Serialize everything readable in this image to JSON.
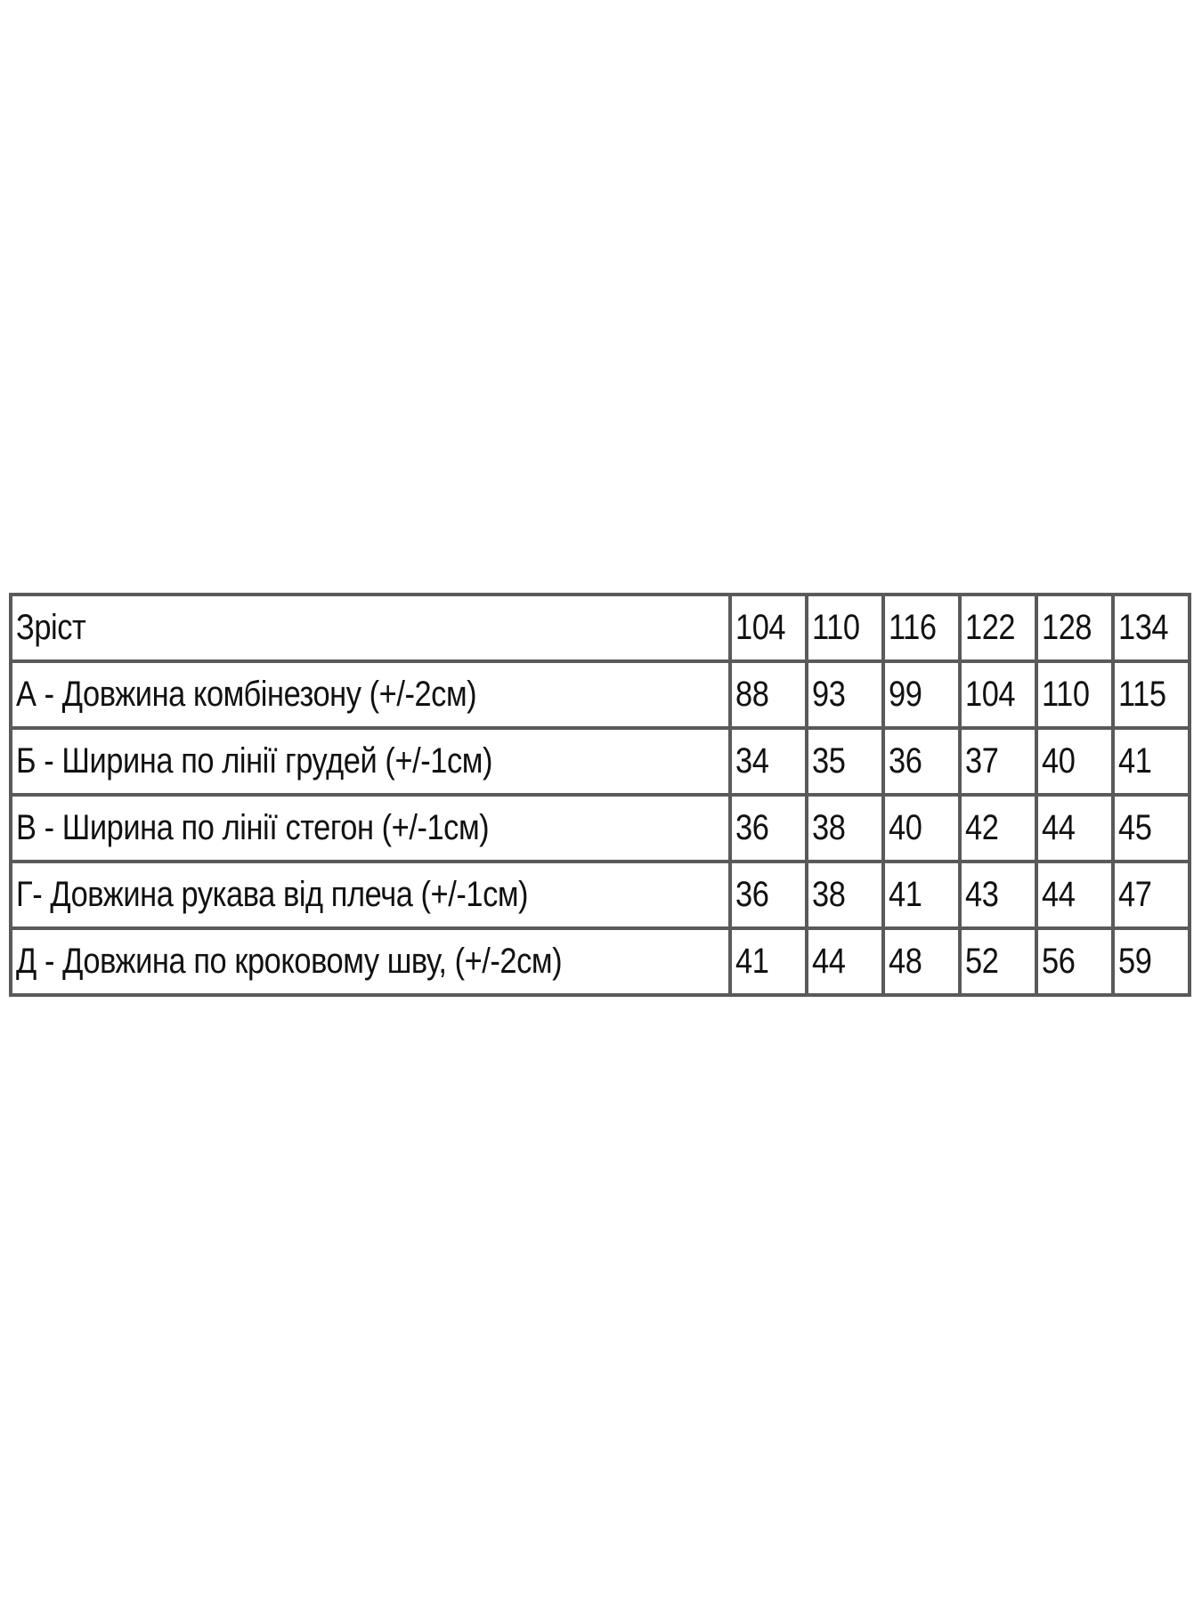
{
  "table": {
    "header": {
      "label": "Зріст",
      "sizes": [
        "104",
        "110",
        "116",
        "122",
        "128",
        "134"
      ]
    },
    "rows": [
      {
        "label": "А - Довжина комбінезону (+/-2см)",
        "values": [
          "88",
          "93",
          "99",
          "104",
          "110",
          "115"
        ]
      },
      {
        "label": "Б - Ширина по лінії грудей (+/-1см)",
        "values": [
          "34",
          "35",
          "36",
          "37",
          "40",
          "41"
        ]
      },
      {
        "label": "В - Ширина по лінії стегон (+/-1см)",
        "values": [
          "36",
          "38",
          "40",
          "42",
          "44",
          "45"
        ]
      },
      {
        "label": "Г- Довжина рукава від плеча (+/-1см)",
        "values": [
          "36",
          "38",
          "41",
          "43",
          "44",
          "47"
        ]
      },
      {
        "label": "Д - Довжина по кроковому шву, (+/-2см)",
        "values": [
          "41",
          "44",
          "48",
          "52",
          "56",
          "59"
        ]
      }
    ],
    "border_color": "#5a5a5a"
  }
}
